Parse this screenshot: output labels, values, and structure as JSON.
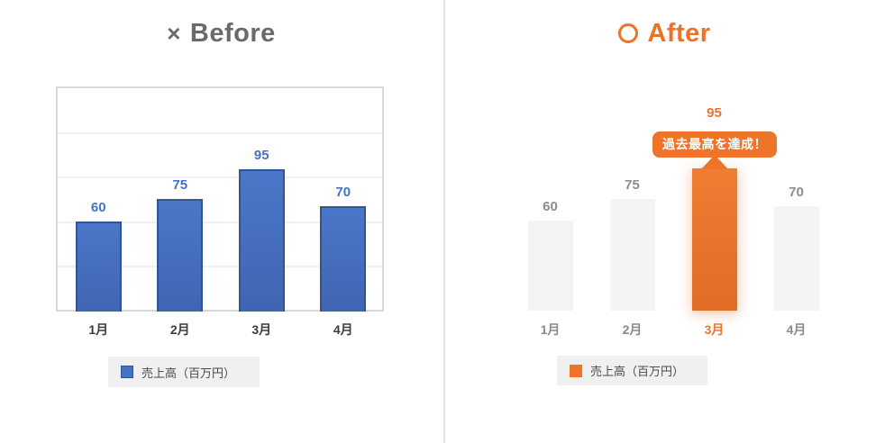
{
  "before": {
    "icon": "×",
    "title": "Before",
    "legend_label": "売上高（百万円）"
  },
  "after": {
    "title": "After",
    "legend_label": "売上高（百万円）",
    "annotation": "過去最高を達成！"
  },
  "colors": {
    "before_bar": "#4472C4",
    "before_bar_border": "#2F5597",
    "before_title": "#6A6A6A",
    "after_accent": "#ED7428",
    "muted_bar": "#F4F4F4",
    "divider": "#E2E2E2"
  },
  "chart_data": [
    {
      "type": "bar",
      "panel": "before",
      "title": "× Before",
      "categories": [
        "1月",
        "2月",
        "3月",
        "4月"
      ],
      "values": [
        60,
        75,
        95,
        70
      ],
      "legend": [
        "売上高（百万円）"
      ],
      "xlabel": "",
      "ylabel": "",
      "ylim": [
        0,
        150
      ],
      "grid": true,
      "bar_color": "#4472C4",
      "value_labels": true
    },
    {
      "type": "bar",
      "panel": "after",
      "title": "○ After",
      "categories": [
        "1月",
        "2月",
        "3月",
        "4月"
      ],
      "values": [
        60,
        75,
        95,
        70
      ],
      "legend": [
        "売上高（百万円）"
      ],
      "xlabel": "",
      "ylabel": "",
      "ylim": [
        0,
        150
      ],
      "grid": false,
      "bar_color": "#F4F4F4",
      "highlight_index": 2,
      "highlight_color": "#ED7428",
      "annotation": {
        "text": "過去最高を達成！",
        "target": "3月"
      },
      "value_labels": true
    }
  ]
}
